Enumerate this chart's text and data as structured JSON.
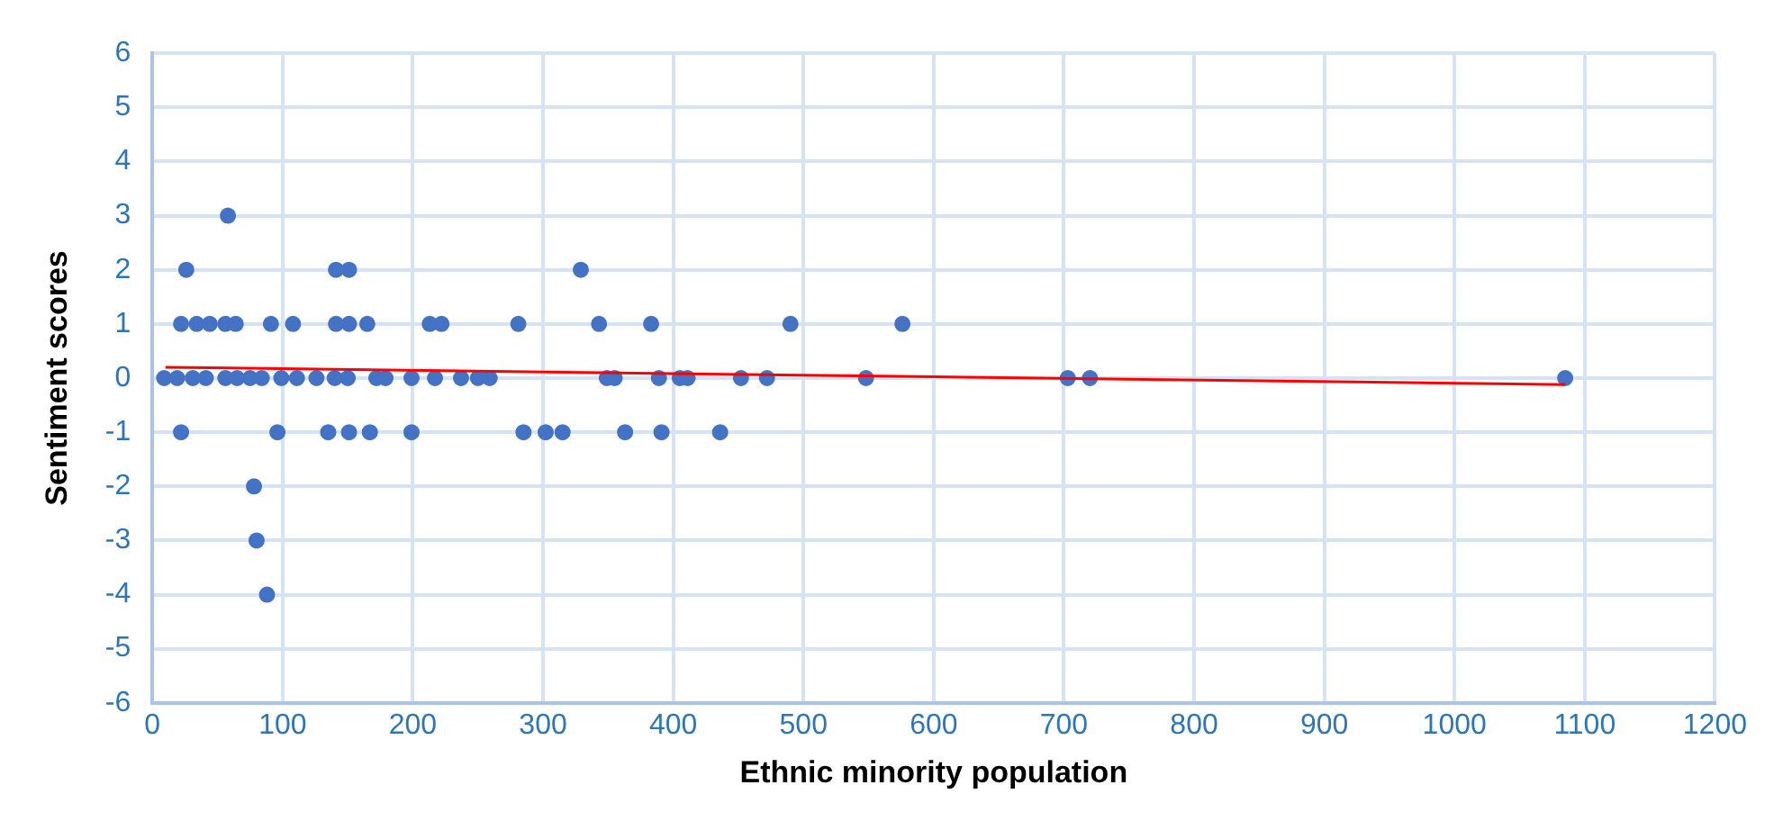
{
  "chart_data": {
    "type": "scatter",
    "xlabel": "Ethnic minority population",
    "ylabel": "Sentiment scores",
    "xlim": [
      0,
      1200
    ],
    "xticks": [
      0,
      100,
      200,
      300,
      400,
      500,
      600,
      700,
      800,
      900,
      1000,
      1100,
      1200
    ],
    "ylim": [
      -6,
      6
    ],
    "yticks": [
      -6,
      -5,
      -4,
      -3,
      -2,
      -1,
      0,
      1,
      2,
      3,
      4,
      5,
      6
    ],
    "grid": true,
    "legend": false,
    "series": [
      {
        "marker": "circle",
        "color": "#4472c4",
        "x": [
          58,
          26,
          141,
          151,
          329,
          22,
          34,
          44,
          56,
          64,
          91,
          108,
          141,
          151,
          165,
          213,
          222,
          281,
          343,
          383,
          490,
          576,
          9,
          19,
          31,
          41,
          56,
          65,
          75,
          84,
          99,
          111,
          126,
          140,
          150,
          172,
          179,
          199,
          217,
          237,
          250,
          259,
          349,
          355,
          389,
          405,
          411,
          452,
          472,
          548,
          703,
          720,
          1085,
          22,
          96,
          135,
          151,
          167,
          199,
          285,
          302,
          315,
          363,
          391,
          436,
          78,
          80,
          88
        ],
        "values": [
          3,
          2,
          2,
          2,
          2,
          1,
          1,
          1,
          1,
          1,
          1,
          1,
          1,
          1,
          1,
          1,
          1,
          1,
          1,
          1,
          1,
          1,
          0,
          0,
          0,
          0,
          0,
          0,
          0,
          0,
          0,
          0,
          0,
          0,
          0,
          0,
          0,
          0,
          0,
          0,
          0,
          0,
          0,
          0,
          0,
          0,
          0,
          0,
          0,
          0,
          0,
          0,
          0,
          -1,
          -1,
          -1,
          -1,
          -1,
          -1,
          -1,
          -1,
          -1,
          -1,
          -1,
          -1,
          -2,
          -3,
          -4
        ]
      },
      {
        "type": "line",
        "color": "#ff0000",
        "x": [
          10,
          1085
        ],
        "values": [
          0.2,
          -0.12
        ]
      }
    ]
  }
}
